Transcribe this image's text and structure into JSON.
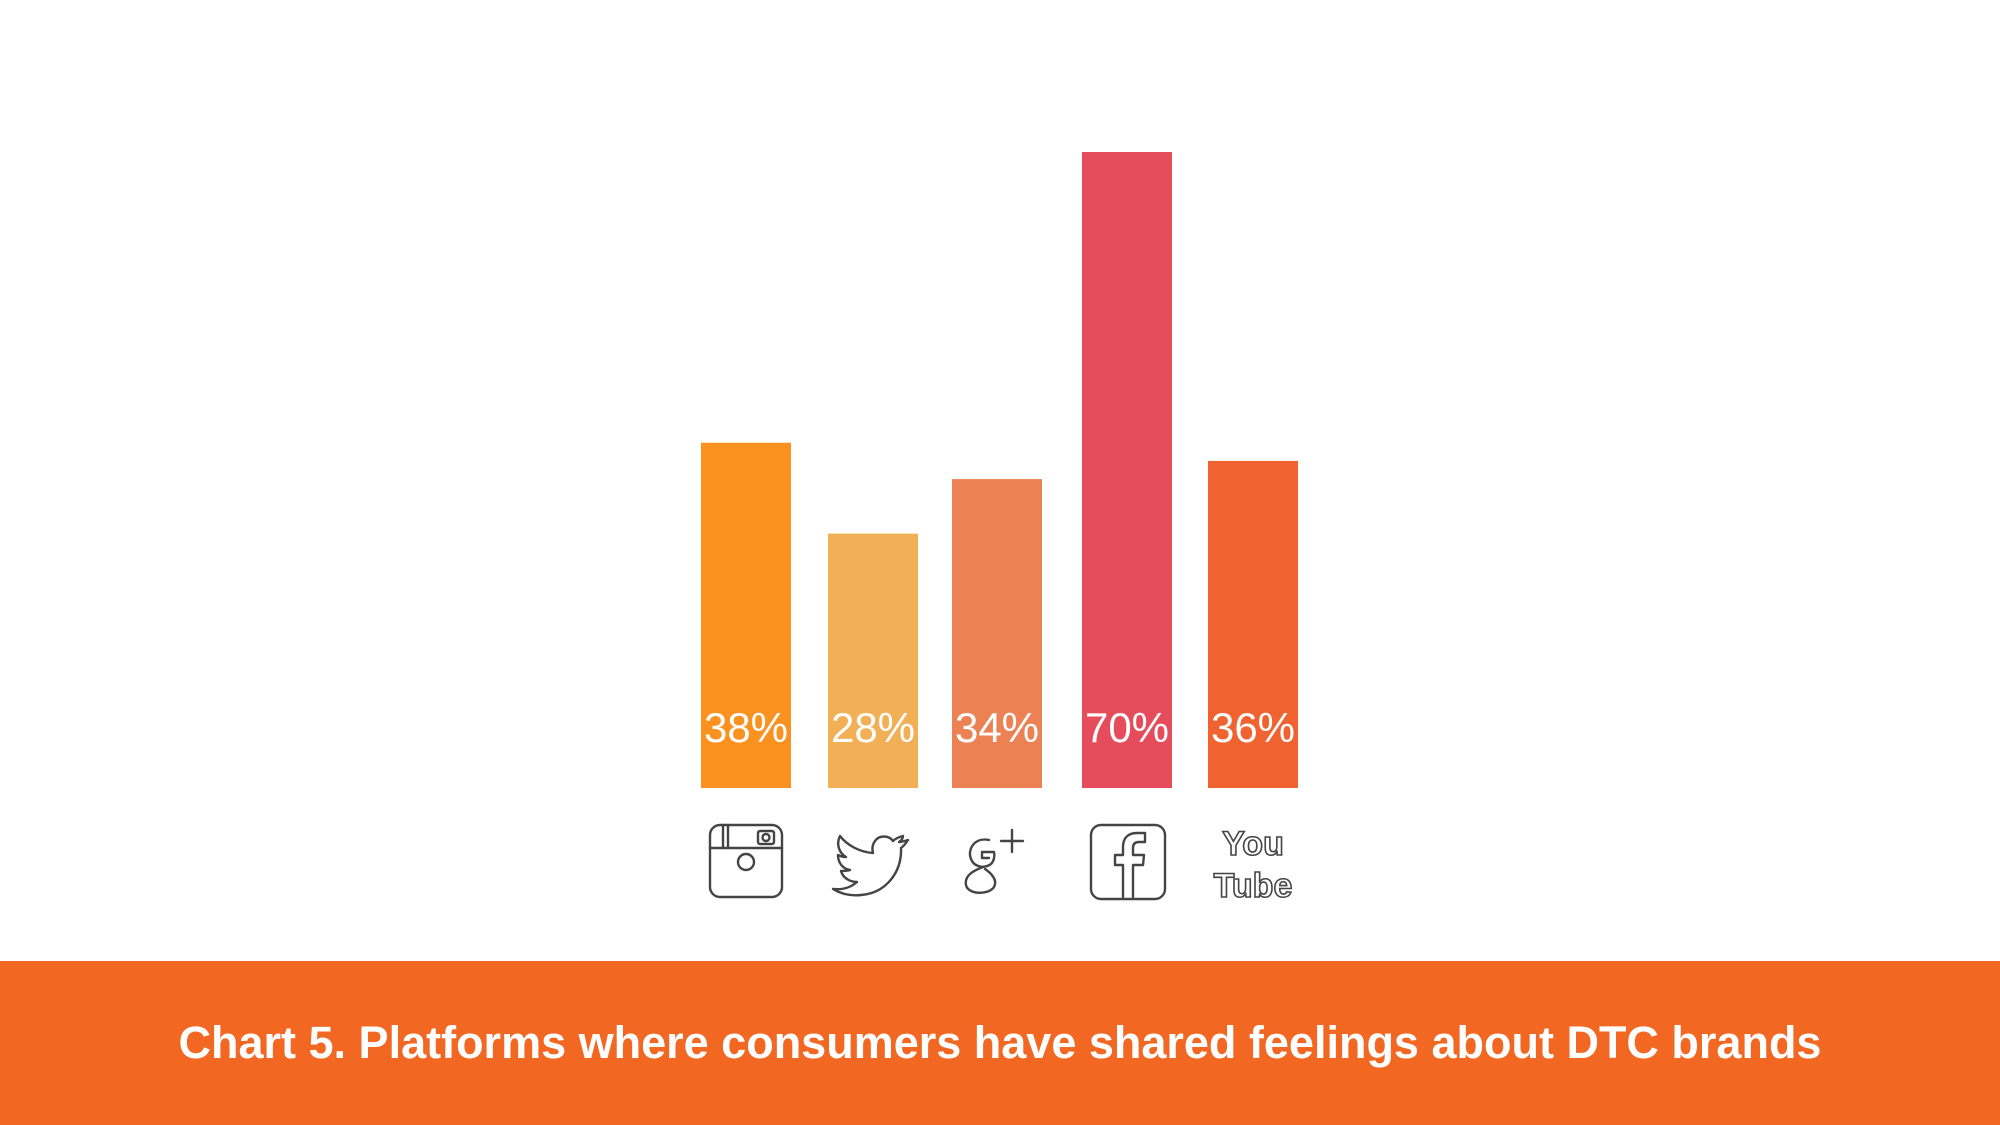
{
  "chart_data": {
    "type": "bar",
    "categories": [
      "Instagram",
      "Twitter",
      "Google+",
      "Facebook",
      "YouTube"
    ],
    "values": [
      38,
      28,
      34,
      70,
      36
    ],
    "value_labels": [
      "38%",
      "28%",
      "34%",
      "70%",
      "36%"
    ],
    "colors": [
      "#fb9220",
      "#f2b056",
      "#ec8154",
      "#e54c5c",
      "#f0622f"
    ],
    "icons": [
      "instagram-icon",
      "twitter-icon",
      "google-plus-icon",
      "facebook-icon",
      "youtube-icon"
    ],
    "youtube_icon_text": [
      "You",
      "Tube"
    ],
    "ylim": [
      0,
      70
    ],
    "grid": false,
    "title": "Chart 5. Platforms where consumers have shared feelings about DTC brands"
  },
  "caption": {
    "background": "#f26722"
  }
}
